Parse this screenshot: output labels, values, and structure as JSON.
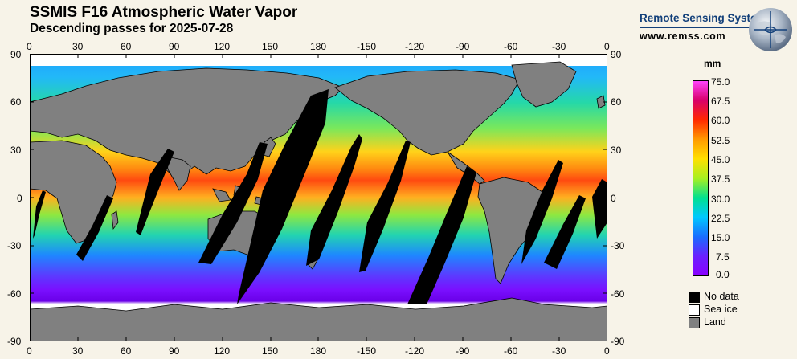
{
  "header": {
    "title": "SSMIS F16 Atmospheric Water Vapor",
    "subtitle": "Descending passes for 2025-07-28"
  },
  "logo": {
    "org": "Remote Sensing Systems",
    "url": "www.remss.com"
  },
  "map": {
    "top_lon_labels": [
      "0",
      "30",
      "60",
      "90",
      "120",
      "150",
      "180",
      "-150",
      "-120",
      "-90",
      "-60",
      "-30",
      "0"
    ],
    "bottom_lon_labels": [
      "0",
      "30",
      "60",
      "90",
      "120",
      "150",
      "180",
      "-150",
      "-120",
      "-90",
      "-60",
      "-30",
      "0"
    ],
    "left_lat_labels": [
      "90",
      "60",
      "30",
      "0",
      "-30",
      "-60",
      "-90"
    ],
    "right_lat_labels": [
      "90",
      "60",
      "30",
      "0",
      "-30",
      "-60",
      "-90"
    ]
  },
  "colorbar": {
    "unit": "mm",
    "ticks": [
      "75.0",
      "67.5",
      "60.0",
      "52.5",
      "45.0",
      "37.5",
      "30.0",
      "22.5",
      "15.0",
      "7.5",
      "0.0"
    ],
    "range": [
      0.0,
      75.0
    ],
    "colors": [
      "#7a00ff",
      "#1a5cff",
      "#00d0ff",
      "#00e070",
      "#d8ff00",
      "#ffd000",
      "#ff8000",
      "#ff2000",
      "#d00060",
      "#ff40ff"
    ]
  },
  "legend": [
    {
      "label": "No data",
      "color": "#000000"
    },
    {
      "label": "Sea ice",
      "color": "#ffffff"
    },
    {
      "label": "Land",
      "color": "#808080"
    }
  ]
}
